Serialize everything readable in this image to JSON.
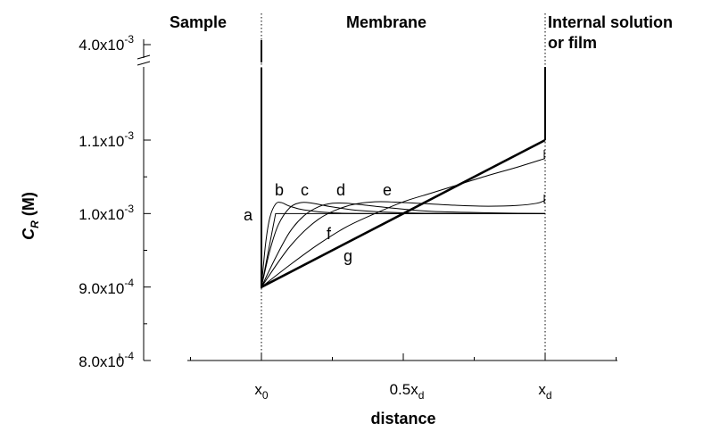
{
  "chart_data": {
    "type": "line",
    "xlabel": "distance",
    "ylabel": "C_R (M)",
    "ylabel_main": "C",
    "ylabel_sub": "R",
    "ylabel_unit": " (M)",
    "xlim": [
      -0.5,
      1.35
    ],
    "ylim": [
      0.0008,
      0.00115
    ],
    "y_break": {
      "below": 0.00115,
      "above": 0.004
    },
    "regions": [
      "Sample",
      "Membrane",
      "Internal solution",
      "or film"
    ],
    "y_ticks": [
      {
        "value": 0.0008,
        "mantissa": "8.0x10",
        "exp": "-4"
      },
      {
        "value": 0.0009,
        "mantissa": "9.0x10",
        "exp": "-4"
      },
      {
        "value": 0.001,
        "mantissa": "1.0x10",
        "exp": "-3"
      },
      {
        "value": 0.0011,
        "mantissa": "1.1x10",
        "exp": "-3"
      },
      {
        "value": 0.004,
        "mantissa": "4.0x10",
        "exp": "-3"
      }
    ],
    "x_ticks": [
      {
        "value": 0,
        "main": "x",
        "sub": "0"
      },
      {
        "value": 0.5,
        "main": "0.5x",
        "sub": "d"
      },
      {
        "value": 1,
        "main": "x",
        "sub": "d"
      }
    ],
    "series": [
      {
        "label": "a",
        "x": [
          0,
          0.05,
          0.2,
          0.4,
          0.6,
          0.8,
          1.0
        ],
        "y": [
          0.0009,
          0.001,
          0.001,
          0.001,
          0.001,
          0.001,
          0.001
        ]
      },
      {
        "label": "b",
        "x": [
          0,
          0.015,
          0.03,
          0.05,
          0.07,
          0.1,
          0.15,
          0.25,
          0.4,
          0.6,
          0.8,
          1.0
        ],
        "y": [
          0.0009,
          0.00096,
          0.000995,
          0.001013,
          0.001015,
          0.00101,
          0.001005,
          0.001001,
          0.001,
          0.001,
          0.001,
          0.001
        ]
      },
      {
        "label": "c",
        "x": [
          0,
          0.03,
          0.06,
          0.1,
          0.14,
          0.18,
          0.25,
          0.35,
          0.5,
          0.7,
          1.0
        ],
        "y": [
          0.0009,
          0.00095,
          0.000985,
          0.001008,
          0.001015,
          0.001014,
          0.001009,
          0.001004,
          0.001001,
          0.001,
          0.001
        ]
      },
      {
        "label": "d",
        "x": [
          0,
          0.05,
          0.1,
          0.15,
          0.2,
          0.25,
          0.3,
          0.4,
          0.5,
          0.6,
          0.8,
          1.0
        ],
        "y": [
          0.0009,
          0.00094,
          0.000975,
          0.000997,
          0.001009,
          0.001014,
          0.001014,
          0.00101,
          0.001006,
          0.001003,
          0.001001,
          0.001
        ]
      },
      {
        "label": "e",
        "x": [
          0,
          0.1,
          0.2,
          0.3,
          0.4,
          0.5,
          0.6,
          0.7,
          0.8,
          0.9,
          0.97,
          1.0
        ],
        "y": [
          0.0009,
          0.000955,
          0.000992,
          0.00101,
          0.001016,
          0.001015,
          0.001013,
          0.001011,
          0.00101,
          0.001011,
          0.001014,
          0.001018
        ]
      },
      {
        "label": "f",
        "x": [
          0,
          0.1,
          0.2,
          0.3,
          0.4,
          0.5,
          0.6,
          0.7,
          0.8,
          0.9,
          1.0
        ],
        "y": [
          0.0009,
          0.00093,
          0.000958,
          0.000982,
          0.001,
          0.001016,
          0.001028,
          0.00104,
          0.001052,
          0.001063,
          0.001075
        ]
      },
      {
        "label": "g",
        "x": [
          0,
          1.0
        ],
        "y": [
          0.0009,
          0.0011
        ]
      }
    ]
  }
}
